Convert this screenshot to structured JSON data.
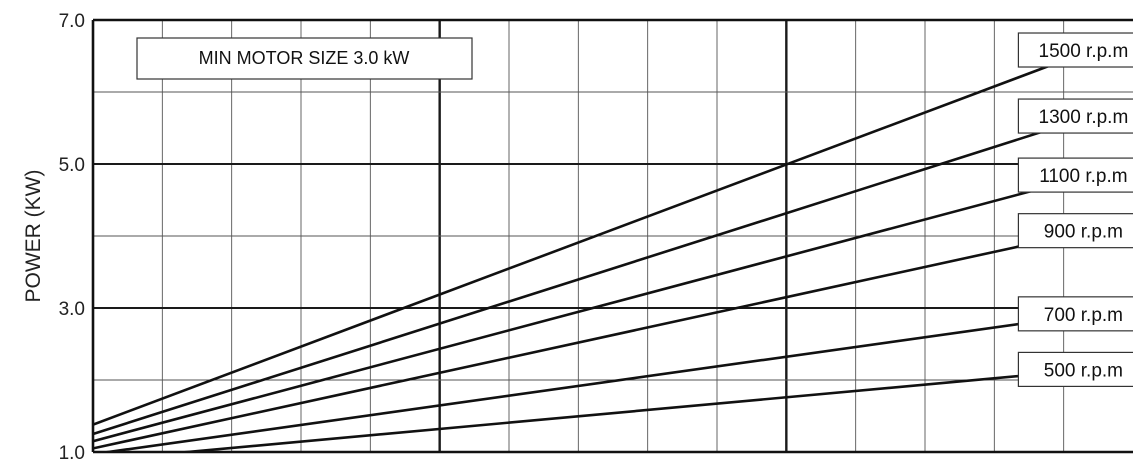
{
  "chart_data": {
    "type": "line",
    "title": "",
    "xlabel": "",
    "ylabel": "POWER (KW)",
    "ylim": [
      1.0,
      7.0
    ],
    "xlim": [
      0,
      1
    ],
    "y_ticks": [
      1.0,
      3.0,
      5.0,
      7.0
    ],
    "y_tick_labels": [
      "1.0",
      "3.0",
      "5.0",
      "7.0"
    ],
    "grid": true,
    "annotation": "MIN MOTOR SIZE 3.0 kW",
    "series": [
      {
        "name": "1500 r.p.m",
        "x": [
          0,
          1
        ],
        "y": [
          1.38,
          6.8
        ]
      },
      {
        "name": "1300 r.p.m",
        "x": [
          0,
          1
        ],
        "y": [
          1.25,
          5.85
        ]
      },
      {
        "name": "1100 r.p.m",
        "x": [
          0,
          1
        ],
        "y": [
          1.15,
          5.0
        ]
      },
      {
        "name": "900 r.p.m",
        "x": [
          0,
          1
        ],
        "y": [
          1.05,
          4.2
        ]
      },
      {
        "name": "700 r.p.m",
        "x": [
          0,
          1
        ],
        "y": [
          0.97,
          3.0
        ]
      },
      {
        "name": "500 r.p.m",
        "x": [
          0,
          1
        ],
        "y": [
          0.88,
          2.2
        ]
      }
    ]
  }
}
